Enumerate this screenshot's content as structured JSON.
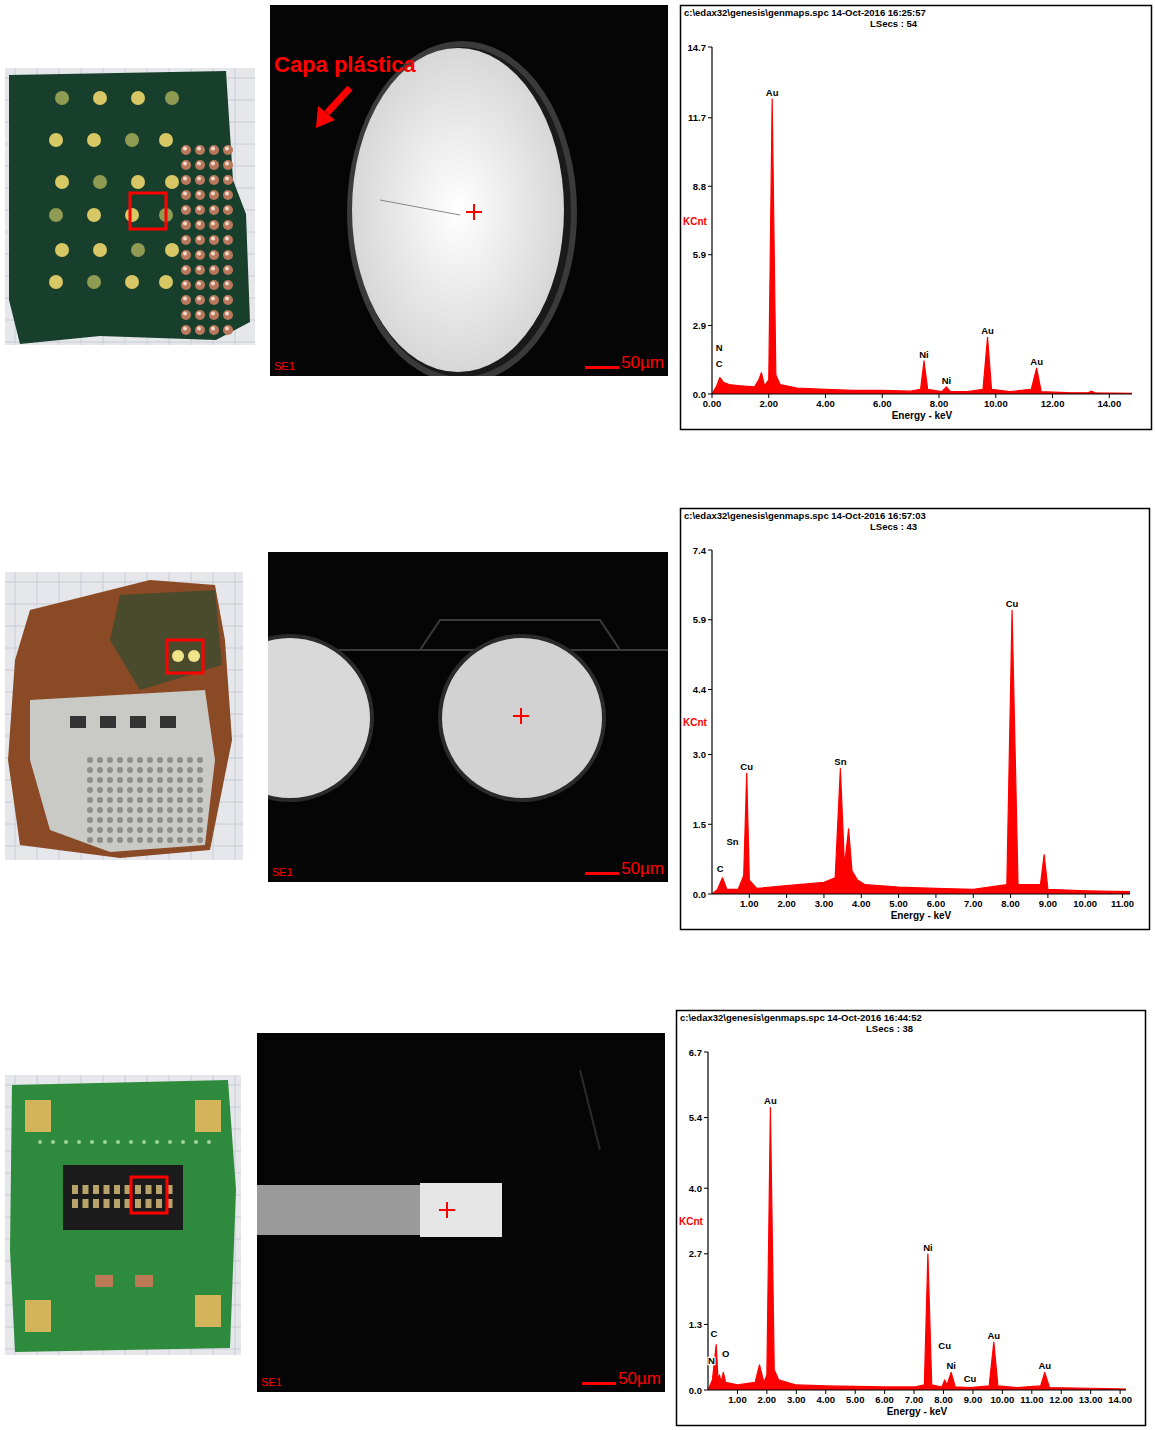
{
  "chart_data": [
    {
      "type": "area",
      "title": "c:\\edax32\\genesis\\genmaps.spc  14-Oct-2016 16:25:57",
      "subtitle": "LSecs : 54",
      "x_label": "Energy - keV",
      "y_label": "KCnt",
      "color": "#ff0000",
      "grid": false,
      "x": [
        0,
        0.15,
        0.28,
        0.4,
        0.6,
        1.0,
        1.5,
        1.65,
        1.74,
        1.85,
        2.0,
        2.12,
        2.25,
        2.4,
        3.0,
        4.0,
        5.0,
        6.0,
        7.0,
        7.35,
        7.47,
        7.6,
        8.1,
        8.26,
        8.4,
        9.0,
        9.55,
        9.71,
        9.85,
        10.5,
        11.25,
        11.44,
        11.6,
        12.5,
        13.25,
        13.38,
        13.5,
        14.8
      ],
      "values": [
        0,
        0.3,
        0.7,
        0.5,
        0.4,
        0.35,
        0.3,
        0.6,
        0.9,
        0.35,
        0.6,
        12.5,
        0.8,
        0.4,
        0.25,
        0.2,
        0.15,
        0.15,
        0.12,
        0.2,
        1.4,
        0.2,
        0.1,
        0.3,
        0.1,
        0.1,
        0.2,
        2.4,
        0.2,
        0.1,
        0.2,
        1.1,
        0.1,
        0.06,
        0.05,
        0.12,
        0.05,
        0.03
      ],
      "xlim": [
        0,
        14.8
      ],
      "ylim": [
        0,
        14.7
      ],
      "xticks": [
        {
          "value": 0,
          "label": "0.00"
        },
        {
          "value": 2,
          "label": "2.00"
        },
        {
          "value": 4,
          "label": "4.00"
        },
        {
          "value": 6,
          "label": "6.00"
        },
        {
          "value": 8,
          "label": "8.00"
        },
        {
          "value": 10,
          "label": "10.00"
        },
        {
          "value": 12,
          "label": "12.00"
        },
        {
          "value": 14,
          "label": "14.00"
        }
      ],
      "yticks": [
        {
          "value": 0,
          "label": "0.0"
        },
        2.9,
        5.9,
        8.8,
        11.7,
        14.7
      ],
      "annotations": [
        {
          "text": "Au",
          "x": 2.12,
          "y": 12.5
        },
        {
          "text": "N",
          "x": 0.25,
          "y": 1.7
        },
        {
          "text": "C",
          "x": 0.25,
          "y": 1.0
        },
        {
          "text": "Ni",
          "x": 7.47,
          "y": 1.4
        },
        {
          "text": "Ni",
          "x": 8.26,
          "y": 0.3
        },
        {
          "text": "Au",
          "x": 9.71,
          "y": 2.4
        },
        {
          "text": "Au",
          "x": 11.44,
          "y": 1.1
        }
      ]
    },
    {
      "type": "area",
      "title": "c:\\edax32\\genesis\\genmaps.spc  14-Oct-2016 16:57:03",
      "subtitle": "LSecs : 43",
      "x_label": "Energy - keV",
      "y_label": "KCnt",
      "color": "#ff0000",
      "grid": false,
      "x": [
        0,
        0.15,
        0.28,
        0.4,
        0.7,
        0.85,
        0.93,
        1.0,
        1.2,
        2.0,
        3.0,
        3.3,
        3.44,
        3.55,
        3.66,
        3.75,
        3.9,
        4.1,
        5.0,
        6.0,
        7.0,
        7.9,
        8.04,
        8.2,
        8.8,
        8.9,
        9.0,
        10.0,
        11.2
      ],
      "values": [
        0,
        0.1,
        0.35,
        0.1,
        0.1,
        0.4,
        2.6,
        0.3,
        0.12,
        0.18,
        0.25,
        0.35,
        2.7,
        0.6,
        1.4,
        0.5,
        0.3,
        0.2,
        0.15,
        0.12,
        0.1,
        0.2,
        6.1,
        0.2,
        0.2,
        0.85,
        0.1,
        0.07,
        0.05
      ],
      "xlim": [
        0,
        11.2
      ],
      "ylim": [
        0,
        7.4
      ],
      "xticks": [
        {
          "value": 1,
          "label": "1.00"
        },
        {
          "value": 2,
          "label": "2.00"
        },
        {
          "value": 3,
          "label": "3.00"
        },
        {
          "value": 4,
          "label": "4.00"
        },
        {
          "value": 5,
          "label": "5.00"
        },
        {
          "value": 6,
          "label": "6.00"
        },
        {
          "value": 7,
          "label": "7.00"
        },
        {
          "value": 8,
          "label": "8.00"
        },
        {
          "value": 9,
          "label": "9.00"
        },
        {
          "value": 10,
          "label": "10.00"
        },
        {
          "value": 11,
          "label": "11.00"
        }
      ],
      "yticks": [
        {
          "value": 0,
          "label": "0.0"
        },
        1.5,
        {
          "value": 3,
          "label": "3.0"
        },
        4.4,
        5.9,
        7.4
      ],
      "annotations": [
        {
          "text": "C",
          "x": 0.22,
          "y": 0.4
        },
        {
          "text": "Sn",
          "x": 0.55,
          "y": 1.0
        },
        {
          "text": "Cu",
          "x": 0.93,
          "y": 2.6
        },
        {
          "text": "Sn",
          "x": 3.44,
          "y": 2.7
        },
        {
          "text": "Cu",
          "x": 8.04,
          "y": 6.1
        }
      ]
    },
    {
      "type": "area",
      "title": "c:\\edax32\\genesis\\genmaps.spc  14-Oct-2016 16:44:52",
      "subtitle": "LSecs : 38",
      "x_label": "Energy - keV",
      "y_label": "KCnt",
      "color": "#ff0000",
      "grid": false,
      "x": [
        0,
        0.15,
        0.28,
        0.34,
        0.39,
        0.45,
        0.52,
        0.6,
        1.0,
        1.6,
        1.75,
        1.9,
        2.0,
        2.12,
        2.25,
        2.4,
        3.0,
        4.0,
        5.0,
        6.0,
        7.0,
        7.35,
        7.47,
        7.6,
        7.95,
        8.04,
        8.12,
        8.26,
        8.4,
        8.9,
        9.55,
        9.71,
        9.85,
        10.5,
        11.3,
        11.44,
        11.6,
        12.5,
        13.5,
        14.2
      ],
      "values": [
        0,
        0.2,
        0.9,
        0.2,
        0.3,
        0.15,
        0.35,
        0.15,
        0.1,
        0.15,
        0.5,
        0.15,
        0.3,
        5.6,
        0.4,
        0.2,
        0.1,
        0.08,
        0.07,
        0.06,
        0.06,
        0.1,
        2.7,
        0.1,
        0.06,
        0.2,
        0.1,
        0.35,
        0.06,
        0.05,
        0.08,
        0.95,
        0.08,
        0.05,
        0.08,
        0.35,
        0.05,
        0.04,
        0.03,
        0.02
      ],
      "xlim": [
        0,
        14.2
      ],
      "ylim": [
        0,
        6.7
      ],
      "xticks": [
        {
          "value": 1,
          "label": "1.00"
        },
        {
          "value": 2,
          "label": "2.00"
        },
        {
          "value": 3,
          "label": "3.00"
        },
        {
          "value": 4,
          "label": "4.00"
        },
        {
          "value": 5,
          "label": "5.00"
        },
        {
          "value": 6,
          "label": "6.00"
        },
        {
          "value": 7,
          "label": "7.00"
        },
        {
          "value": 8,
          "label": "8.00"
        },
        {
          "value": 9,
          "label": "9.00"
        },
        {
          "value": 10,
          "label": "10.00"
        },
        {
          "value": 11,
          "label": "11.00"
        },
        {
          "value": 12,
          "label": "12.00"
        },
        {
          "value": 13,
          "label": "13.00"
        },
        {
          "value": 14,
          "label": "14.00"
        }
      ],
      "yticks": [
        {
          "value": 0,
          "label": "0.0"
        },
        1.3,
        2.7,
        {
          "value": 4,
          "label": "4.0"
        },
        5.4,
        6.7
      ],
      "annotations": [
        {
          "text": "C",
          "x": 0.2,
          "y": 1.0
        },
        {
          "text": "N",
          "x": 0.12,
          "y": 0.45
        },
        {
          "text": "O",
          "x": 0.6,
          "y": 0.6
        },
        {
          "text": "Au",
          "x": 2.12,
          "y": 5.6
        },
        {
          "text": "Ni",
          "x": 7.47,
          "y": 2.7
        },
        {
          "text": "Cu",
          "x": 8.04,
          "y": 0.75
        },
        {
          "text": "Ni",
          "x": 8.26,
          "y": 0.35
        },
        {
          "text": "Cu",
          "x": 8.9,
          "y": 0.1
        },
        {
          "text": "Au",
          "x": 9.71,
          "y": 0.95
        },
        {
          "text": "Au",
          "x": 11.44,
          "y": 0.35
        }
      ]
    }
  ],
  "micrographs": [
    {
      "detector": "SE1",
      "scale_bar": "50µm",
      "annotation": "Capa plástica"
    },
    {
      "detector": "SE1",
      "scale_bar": "50µm"
    },
    {
      "detector": "SE1",
      "scale_bar": "50µm"
    }
  ]
}
